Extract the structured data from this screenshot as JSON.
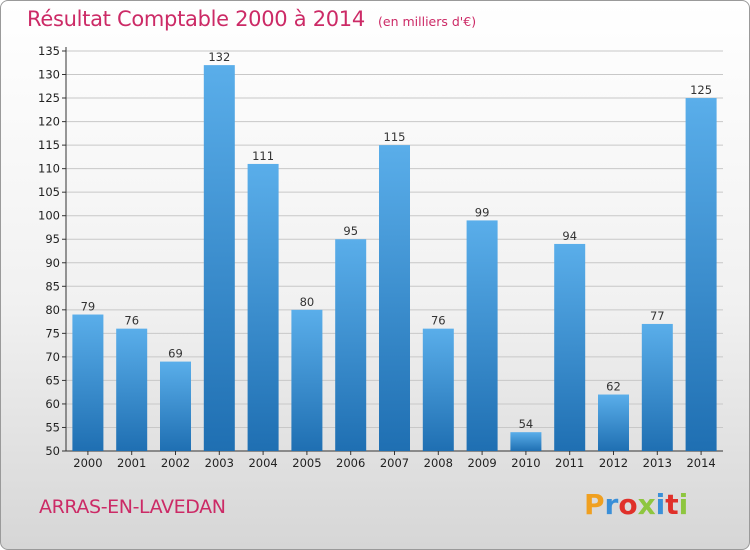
{
  "title": "Résultat Comptable 2000 à 2014",
  "subtitle": "(en milliers d'€)",
  "commune": "ARRAS-EN-LAVEDAN",
  "logo": {
    "letters": [
      "P",
      "r",
      "o",
      "x",
      "i",
      "t",
      "i"
    ],
    "colors": [
      "#f0a020",
      "#3a8fd8",
      "#e0302a",
      "#8ec63f",
      "#3a8fd8",
      "#e0302a",
      "#8ec63f"
    ]
  },
  "colors": {
    "bar_top": "#5aaeea",
    "bar_bottom": "#1f6fb2",
    "title": "#cc2a66",
    "grid": "#c8c8c8"
  },
  "chart_data": {
    "type": "bar",
    "title": "Résultat Comptable 2000 à 2014",
    "xlabel": "",
    "ylabel": "en milliers d'€",
    "categories": [
      "2000",
      "2001",
      "2002",
      "2003",
      "2004",
      "2005",
      "2006",
      "2007",
      "2008",
      "2009",
      "2010",
      "2011",
      "2012",
      "2013",
      "2014"
    ],
    "values": [
      79,
      76,
      69,
      132,
      111,
      80,
      95,
      115,
      76,
      99,
      54,
      94,
      62,
      77,
      125
    ],
    "ylim": [
      50,
      135
    ],
    "yticks": [
      50,
      55,
      60,
      65,
      70,
      75,
      80,
      85,
      90,
      95,
      100,
      105,
      110,
      115,
      120,
      125,
      130,
      135
    ],
    "grid": true
  }
}
